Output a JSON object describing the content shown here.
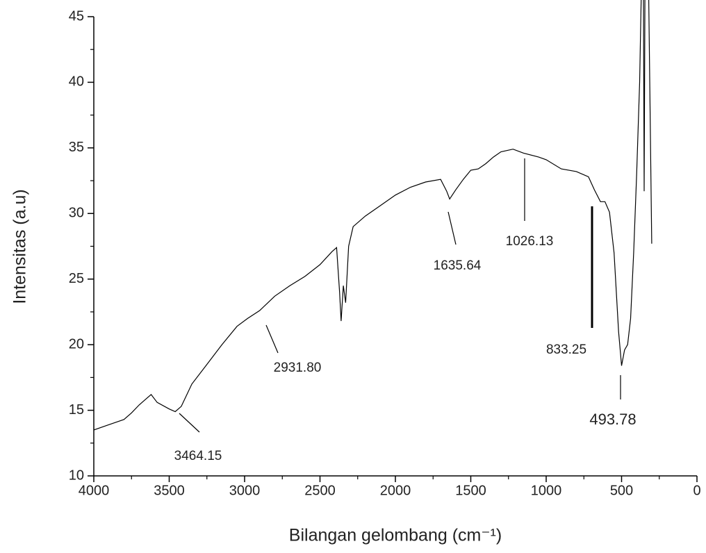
{
  "chart_data": {
    "type": "line",
    "xlabel": "Bilangan gelombang (cm⁻¹)",
    "ylabel": "Intensitas (a.u)",
    "x": [
      4000,
      3900,
      3800,
      3750,
      3700,
      3650,
      3620,
      3580,
      3500,
      3460,
      3420,
      3350,
      3250,
      3150,
      3050,
      2980,
      2900,
      2800,
      2700,
      2600,
      2500,
      2420,
      2390,
      2370,
      2360,
      2345,
      2330,
      2310,
      2280,
      2200,
      2100,
      2000,
      1900,
      1800,
      1700,
      1660,
      1640,
      1600,
      1550,
      1500,
      1450,
      1400,
      1350,
      1300,
      1220,
      1150,
      1050,
      1000,
      900,
      800,
      720,
      680,
      640,
      610,
      580,
      550,
      520,
      500,
      480,
      460,
      440,
      420,
      400,
      380,
      370,
      355,
      350,
      345,
      320,
      300
    ],
    "values": [
      13.5,
      13.9,
      14.3,
      14.8,
      15.4,
      15.9,
      16.2,
      15.6,
      15.1,
      14.9,
      15.3,
      17.0,
      18.5,
      20.0,
      21.4,
      22.0,
      22.6,
      23.7,
      24.5,
      25.2,
      26.1,
      27.1,
      27.4,
      24.0,
      21.8,
      24.5,
      23.2,
      27.5,
      29.0,
      29.8,
      30.6,
      31.4,
      32.0,
      32.4,
      32.6,
      31.7,
      31.1,
      31.8,
      32.6,
      33.3,
      33.4,
      33.8,
      34.3,
      34.7,
      34.9,
      34.6,
      34.3,
      34.1,
      33.4,
      33.2,
      32.8,
      31.8,
      30.9,
      30.9,
      30.1,
      27.0,
      21.0,
      18.4,
      19.6,
      20.0,
      22.0,
      27.0,
      33.0,
      40.0,
      46.3,
      46.3,
      31.7,
      46.3,
      46.3,
      27.7
    ],
    "color": "#000000",
    "xlim": [
      4000,
      0
    ],
    "xticks": [
      4000,
      3500,
      3000,
      2500,
      2000,
      1500,
      1000,
      500,
      0
    ],
    "ylim": [
      10,
      45
    ],
    "yticks": [
      10,
      15,
      20,
      25,
      30,
      35,
      40,
      45
    ],
    "annotations": [
      "3464.15",
      "2931.80",
      "1635.64",
      "1026.13",
      "833.25",
      "493.78"
    ]
  }
}
